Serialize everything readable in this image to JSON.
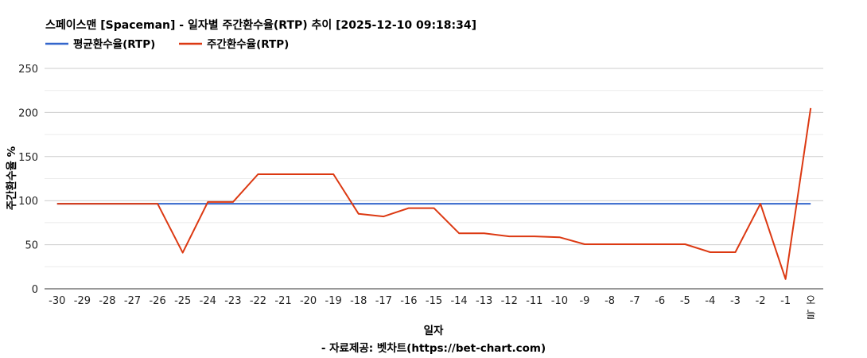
{
  "chart_data": {
    "type": "line",
    "title": "스페이스맨 [Spaceman] - 일자별 주간환수율(RTP) 추이 [2025-12-10 09:18:34]",
    "xlabel": "일자",
    "ylabel": "주간환수율 %",
    "credit": "- 자료제공: 벳차트(https://bet-chart.com)",
    "legend_position": "top-left",
    "grid": true,
    "ylim": [
      0,
      250
    ],
    "yticks": [
      0,
      50,
      100,
      150,
      200,
      250
    ],
    "categories": [
      "-30",
      "-29",
      "-28",
      "-27",
      "-26",
      "-25",
      "-24",
      "-23",
      "-22",
      "-21",
      "-20",
      "-19",
      "-18",
      "-17",
      "-16",
      "-15",
      "-14",
      "-13",
      "-12",
      "-11",
      "-10",
      "-9",
      "-8",
      "-7",
      "-6",
      "-5",
      "-4",
      "-3",
      "-2",
      "-1",
      "오늘"
    ],
    "series": [
      {
        "name": "평균환수율(RTP)",
        "color": "#3366cc",
        "values": [
          96.5,
          96.5,
          96.5,
          96.5,
          96.5,
          96.5,
          96.5,
          96.5,
          96.5,
          96.5,
          96.5,
          96.5,
          96.5,
          96.5,
          96.5,
          96.5,
          96.5,
          96.5,
          96.5,
          96.5,
          96.5,
          96.5,
          96.5,
          96.5,
          96.5,
          96.5,
          96.5,
          96.5,
          96.5,
          96.5,
          96.5
        ]
      },
      {
        "name": "주간환수율(RTP)",
        "color": "#dc3912",
        "values": [
          96.5,
          96.5,
          96.5,
          96.5,
          96.5,
          41,
          98.5,
          98.5,
          130,
          130,
          130,
          130,
          85,
          82,
          91.5,
          91.5,
          63,
          63,
          59.5,
          59.5,
          58.5,
          50.5,
          50.5,
          50.5,
          50.5,
          50.5,
          41.5,
          41.5,
          96.5,
          11,
          205
        ]
      }
    ]
  }
}
